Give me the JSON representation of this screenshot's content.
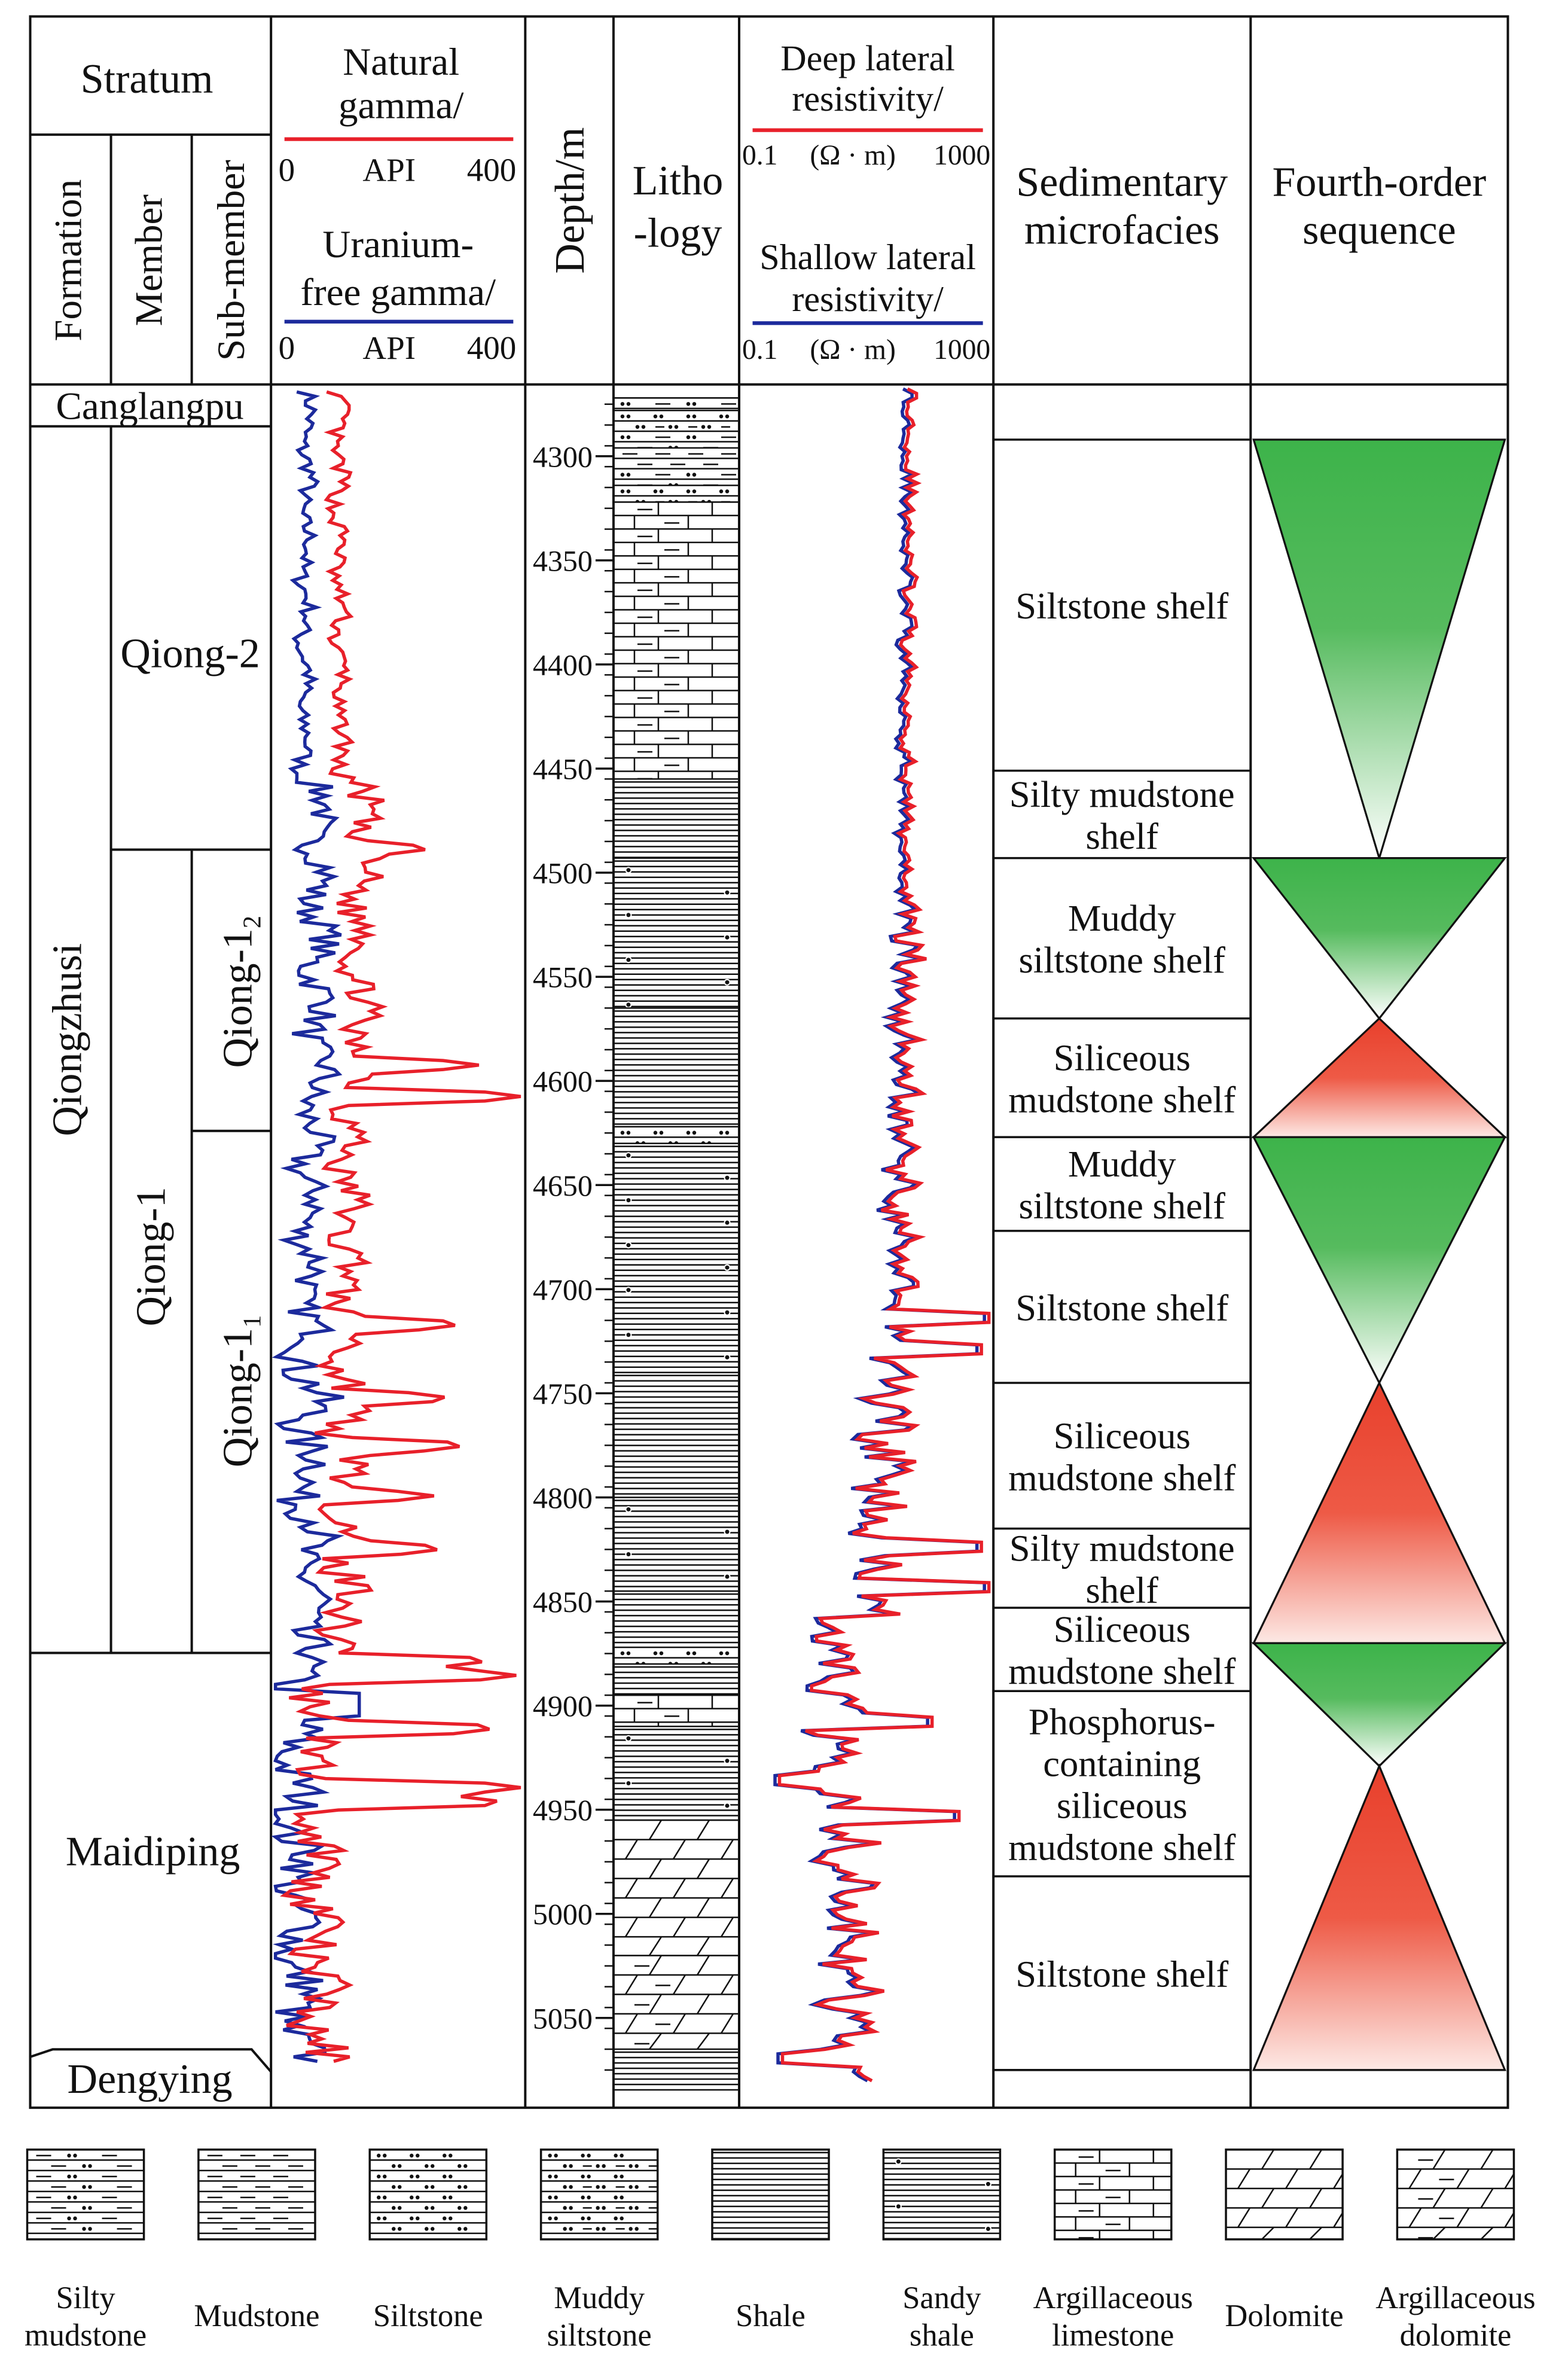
{
  "header": {
    "stratum": "Stratum",
    "formation": "Formation",
    "member": "Member",
    "sub_member": "Sub-member",
    "natural_gamma": [
      "Natural",
      "gamma/"
    ],
    "natural_gamma_scale": {
      "min": "0",
      "unit": "API",
      "max": "400"
    },
    "uranium_free_gamma": [
      "Uranium-",
      "free gamma/"
    ],
    "uranium_free_gamma_scale": {
      "min": "0",
      "unit": "API",
      "max": "400"
    },
    "depth": "Depth/m",
    "lithology": [
      "Litho",
      "-logy"
    ],
    "deep_resistivity": [
      "Deep lateral",
      "resistivity/"
    ],
    "deep_resistivity_scale": {
      "min": "0.1",
      "unit": "(Ω · m)",
      "max": "1000"
    },
    "shallow_resistivity": [
      "Shallow lateral",
      "resistivity/"
    ],
    "shallow_resistivity_scale": {
      "min": "0.1",
      "unit": "(Ω · m)",
      "max": "1000"
    },
    "microfacies": [
      "Sedimentary",
      "microfacies"
    ],
    "sequence": [
      "Fourth-order",
      "sequence"
    ]
  },
  "formations": {
    "canglangpu": "Canglangpu",
    "qiongzhusi": "Qiongzhusi",
    "maidiping": "Maidiping",
    "dengying": "Dengying"
  },
  "members": {
    "qiong2": "Qiong-2",
    "qiong1": "Qiong-1"
  },
  "sub_members": {
    "qiong1_2": {
      "base": "Qiong-1",
      "sub": "2"
    },
    "qiong1_1": {
      "base": "Qiong-1",
      "sub": "1"
    }
  },
  "depth_ticks": [
    "4300",
    "4350",
    "4400",
    "4450",
    "4500",
    "4550",
    "4600",
    "4650",
    "4700",
    "4750",
    "4800",
    "4850",
    "4900",
    "4950",
    "5000",
    "5050"
  ],
  "depth_range_m": [
    4272,
    5085
  ],
  "microfacies": [
    {
      "from": 4272,
      "to": 4292,
      "lines": []
    },
    {
      "from": 4292,
      "to": 4451,
      "lines": [
        "Siltstone shelf"
      ]
    },
    {
      "from": 4451,
      "to": 4493,
      "lines": [
        "Silty mudstone",
        "shelf"
      ]
    },
    {
      "from": 4493,
      "to": 4570,
      "lines": [
        "Muddy",
        "siltstone shelf"
      ]
    },
    {
      "from": 4570,
      "to": 4627,
      "lines": [
        "Siliceous",
        "mudstone shelf"
      ]
    },
    {
      "from": 4627,
      "to": 4672,
      "lines": [
        "Muddy",
        "siltstone shelf"
      ]
    },
    {
      "from": 4672,
      "to": 4745,
      "lines": [
        "Siltstone shelf"
      ]
    },
    {
      "from": 4745,
      "to": 4815,
      "lines": [
        "Siliceous",
        "mudstone shelf"
      ]
    },
    {
      "from": 4815,
      "to": 4853,
      "lines": [
        "Silty mudstone",
        "shelf"
      ]
    },
    {
      "from": 4853,
      "to": 4893,
      "lines": [
        "Siliceous",
        "mudstone shelf"
      ]
    },
    {
      "from": 4893,
      "to": 4982,
      "lines": [
        "Phosphorus-",
        "containing",
        "siliceous",
        "mudstone shelf"
      ]
    },
    {
      "from": 4982,
      "to": 5075,
      "lines": [
        "Siltstone shelf"
      ]
    }
  ],
  "sequences": [
    {
      "from": 4292,
      "to": 4493,
      "type": "down",
      "color": "green"
    },
    {
      "from": 4493,
      "to": 4570,
      "type": "down",
      "color": "green"
    },
    {
      "from": 4570,
      "to": 4627,
      "type": "up",
      "color": "red"
    },
    {
      "from": 4627,
      "to": 4745,
      "type": "down",
      "color": "green"
    },
    {
      "from": 4745,
      "to": 4870,
      "type": "up",
      "color": "red"
    },
    {
      "from": 4870,
      "to": 4929,
      "type": "down",
      "color": "green"
    },
    {
      "from": 4929,
      "to": 5075,
      "type": "up",
      "color": "red"
    }
  ],
  "lithology_intervals": [
    {
      "from": 4272,
      "to": 4278,
      "type": "silty-mudstone"
    },
    {
      "from": 4278,
      "to": 4288,
      "type": "muddy-siltstone"
    },
    {
      "from": 4288,
      "to": 4296,
      "type": "silty-mudstone"
    },
    {
      "from": 4296,
      "to": 4306,
      "type": "mudstone"
    },
    {
      "from": 4306,
      "to": 4314,
      "type": "silty-mudstone"
    },
    {
      "from": 4314,
      "to": 4322,
      "type": "muddy-siltstone"
    },
    {
      "from": 4322,
      "to": 4455,
      "type": "argillaceous-limestone"
    },
    {
      "from": 4455,
      "to": 4493,
      "type": "shale"
    },
    {
      "from": 4493,
      "to": 4565,
      "type": "sandy-shale"
    },
    {
      "from": 4565,
      "to": 4622,
      "type": "shale"
    },
    {
      "from": 4622,
      "to": 4630,
      "type": "siltstone"
    },
    {
      "from": 4630,
      "to": 4740,
      "type": "sandy-shale"
    },
    {
      "from": 4740,
      "to": 4800,
      "type": "shale"
    },
    {
      "from": 4800,
      "to": 4845,
      "type": "sandy-shale"
    },
    {
      "from": 4845,
      "to": 4872,
      "type": "shale"
    },
    {
      "from": 4872,
      "to": 4880,
      "type": "siltstone"
    },
    {
      "from": 4880,
      "to": 4895,
      "type": "shale"
    },
    {
      "from": 4895,
      "to": 4910,
      "type": "argillaceous-limestone"
    },
    {
      "from": 4910,
      "to": 4955,
      "type": "sandy-shale"
    },
    {
      "from": 4955,
      "to": 5020,
      "type": "dolomite"
    },
    {
      "from": 5020,
      "to": 5065,
      "type": "argillaceous-dolomite"
    },
    {
      "from": 5065,
      "to": 5085,
      "type": "shale"
    }
  ],
  "legend": [
    {
      "key": "silty-mudstone",
      "lines": [
        "Silty",
        "mudstone"
      ]
    },
    {
      "key": "mudstone",
      "lines": [
        "Mudstone"
      ]
    },
    {
      "key": "siltstone",
      "lines": [
        "Siltstone"
      ]
    },
    {
      "key": "muddy-siltstone",
      "lines": [
        "Muddy",
        "siltstone"
      ]
    },
    {
      "key": "shale",
      "lines": [
        "Shale"
      ]
    },
    {
      "key": "sandy-shale",
      "lines": [
        "Sandy",
        "shale"
      ]
    },
    {
      "key": "argillaceous-limestone",
      "lines": [
        "Argillaceous",
        "limestone"
      ]
    },
    {
      "key": "dolomite",
      "lines": [
        "Dolomite"
      ]
    },
    {
      "key": "argillaceous-dolomite",
      "lines": [
        "Argillaceous",
        "dolomite"
      ]
    }
  ],
  "colors": {
    "natural_gamma": "#e8202a",
    "uranium_free_gamma": "#1c2a9c",
    "deep_resistivity": "#e8202a",
    "shallow_resistivity": "#1c2a9c",
    "sequence_green": "#3db34a",
    "sequence_red": "#e8402c"
  }
}
